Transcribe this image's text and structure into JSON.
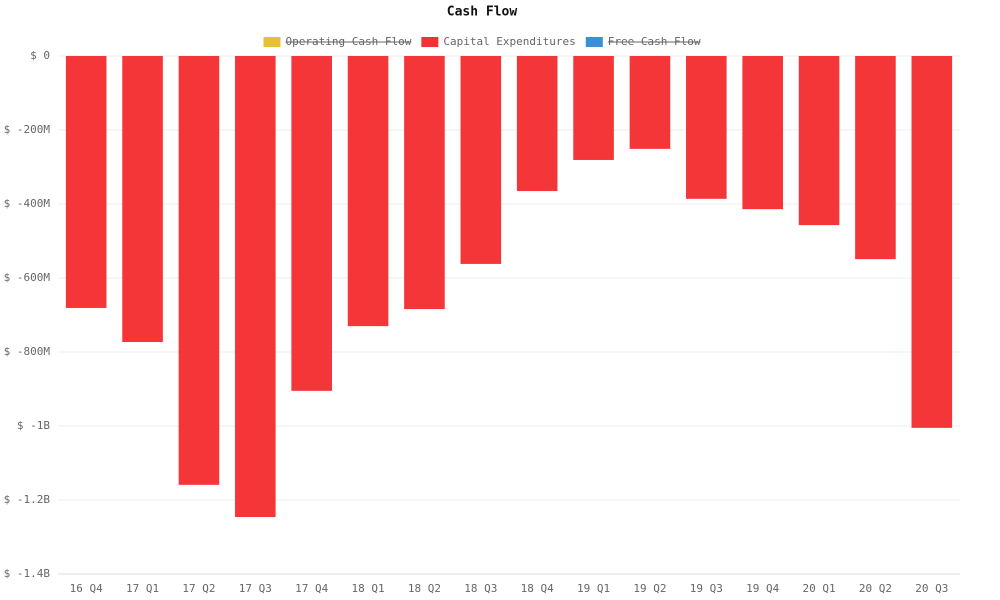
{
  "chart_data": {
    "type": "bar",
    "title": "Cash Flow",
    "categories": [
      "16 Q4",
      "17 Q1",
      "17 Q2",
      "17 Q3",
      "17 Q4",
      "18 Q1",
      "18 Q2",
      "18 Q3",
      "18 Q4",
      "19 Q1",
      "19 Q2",
      "19 Q3",
      "19 Q4",
      "20 Q1",
      "20 Q2",
      "20 Q3"
    ],
    "series": [
      {
        "name": "Operating Cash Flow",
        "color": "#e6c233",
        "hidden": true
      },
      {
        "name": "Capital Expenditures",
        "color": "#f53033",
        "values": [
          -681000000,
          -773000000,
          -1159000000,
          -1246000000,
          -905000000,
          -730000000,
          -684000000,
          -562000000,
          -365000000,
          -281000000,
          -251000000,
          -386000000,
          -414000000,
          -457000000,
          -549000000,
          -1005000000
        ]
      },
      {
        "name": "Free Cash Flow",
        "color": "#3a8fd6",
        "hidden": true
      }
    ],
    "ylim": [
      -1400000000,
      0
    ],
    "yticks": [
      {
        "value": 0,
        "label": "$ 0"
      },
      {
        "value": -200000000,
        "label": "$ -200M"
      },
      {
        "value": -400000000,
        "label": "$ -400M"
      },
      {
        "value": -600000000,
        "label": "$ -600M"
      },
      {
        "value": -800000000,
        "label": "$ -800M"
      },
      {
        "value": -1000000000,
        "label": "$ -1B"
      },
      {
        "value": -1200000000,
        "label": "$ -1.2B"
      },
      {
        "value": -1400000000,
        "label": "$ -1.4B"
      }
    ],
    "grid": true
  }
}
